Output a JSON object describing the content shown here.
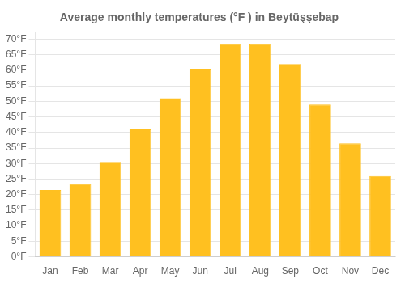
{
  "chart_data": {
    "type": "bar",
    "title": "Average monthly temperatures (°F ) in Beytüşşebap",
    "categories": [
      "Jan",
      "Feb",
      "Mar",
      "Apr",
      "May",
      "Jun",
      "Jul",
      "Aug",
      "Sep",
      "Oct",
      "Nov",
      "Dec"
    ],
    "values": [
      21.5,
      23.5,
      30.5,
      41.0,
      51.0,
      60.5,
      68.5,
      68.5,
      62.0,
      49.0,
      36.5,
      26.0
    ],
    "color": "#FFC020",
    "ylim": [
      0,
      72
    ],
    "yticks": [
      {
        "value": 0,
        "label": "0°F"
      },
      {
        "value": 5,
        "label": "5°F"
      },
      {
        "value": 10,
        "label": "10°F"
      },
      {
        "value": 15,
        "label": "15°F"
      },
      {
        "value": 20,
        "label": "20°F"
      },
      {
        "value": 25,
        "label": "25°F"
      },
      {
        "value": 30,
        "label": "30°F"
      },
      {
        "value": 35,
        "label": "35°F"
      },
      {
        "value": 40,
        "label": "40°F"
      },
      {
        "value": 45,
        "label": "45°F"
      },
      {
        "value": 50,
        "label": "50°F"
      },
      {
        "value": 55,
        "label": "55°F"
      },
      {
        "value": 60,
        "label": "60°F"
      },
      {
        "value": 65,
        "label": "65°F"
      },
      {
        "value": 70,
        "label": "70°F"
      }
    ],
    "grid": true
  }
}
